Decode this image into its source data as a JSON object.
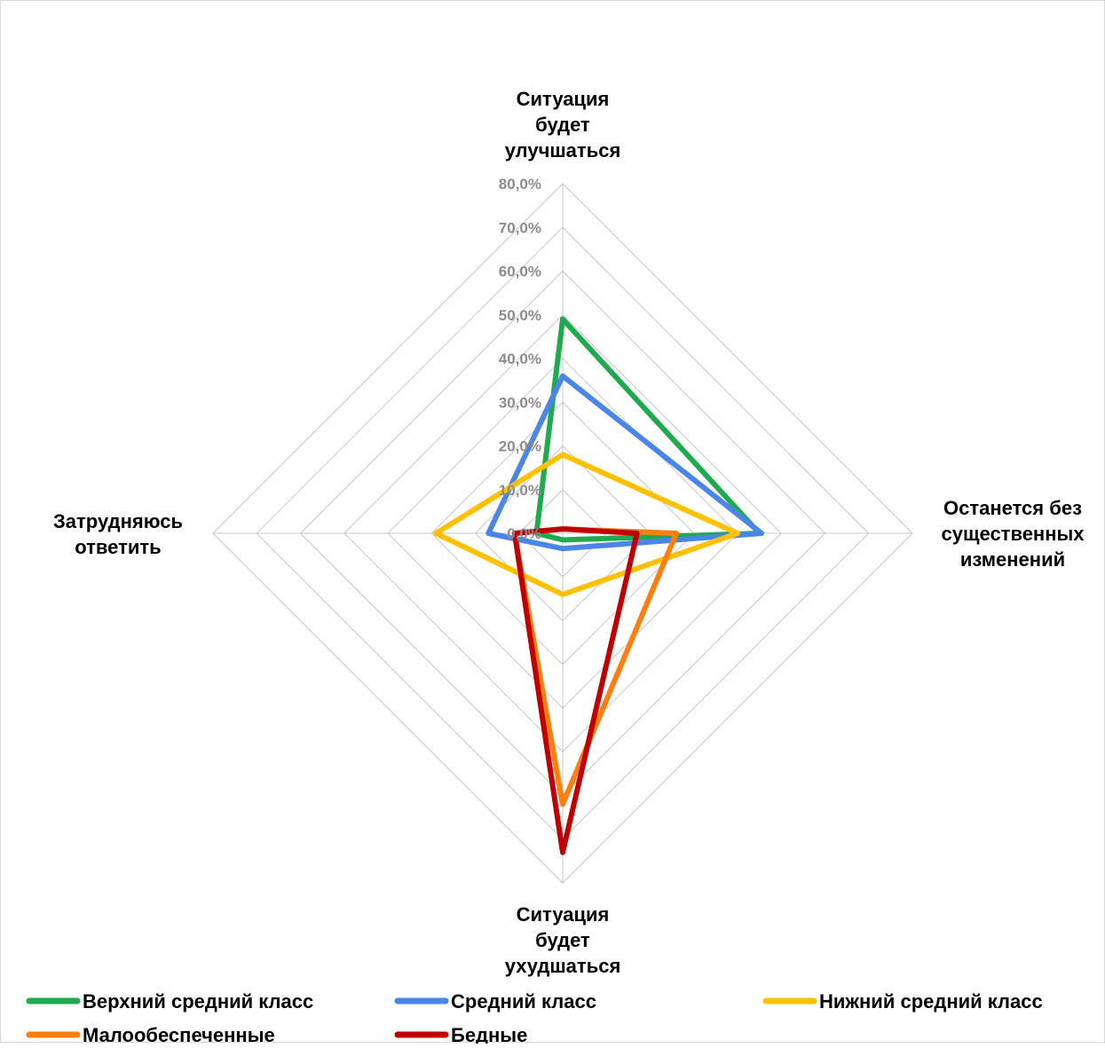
{
  "chart_data": {
    "type": "radar",
    "title": "",
    "axes": [
      [
        "Ситуация",
        "будет",
        "улучшаться"
      ],
      [
        "Останется без",
        "существенных",
        "изменений"
      ],
      [
        "Ситуация",
        "будет",
        "ухудшаться"
      ],
      [
        "Затрудняюсь",
        "ответить"
      ]
    ],
    "range": [
      0,
      80
    ],
    "ticks": [
      "0,0%",
      "10,0%",
      "20,0%",
      "30,0%",
      "40,0%",
      "50,0%",
      "60,0%",
      "70,0%",
      "80,0%"
    ],
    "tick_values": [
      0,
      10,
      20,
      30,
      40,
      50,
      60,
      70,
      80
    ],
    "grid": true,
    "legend_position": "bottom",
    "series": [
      {
        "name": "Верхний средний класс",
        "color": "#1faa4f",
        "values": [
          49.0,
          45.0,
          1.5,
          6.0
        ]
      },
      {
        "name": "Средний класс",
        "color": "#4a86e8",
        "values": [
          36.0,
          45.5,
          3.5,
          17.0
        ]
      },
      {
        "name": "Нижний средний класс",
        "color": "#ffc000",
        "values": [
          18.0,
          40.0,
          14.0,
          29.0
        ]
      },
      {
        "name": "Малообеспеченные",
        "color": "#ff7f0e",
        "values": [
          1.0,
          26.0,
          62.0,
          11.0
        ]
      },
      {
        "name": "Бедные",
        "color": "#c00000",
        "values": [
          1.0,
          17.0,
          73.0,
          11.0
        ]
      }
    ]
  }
}
